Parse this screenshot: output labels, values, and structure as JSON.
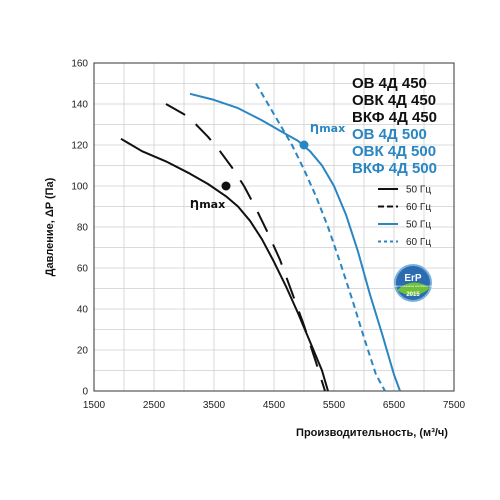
{
  "chart_data": {
    "type": "line",
    "title": "",
    "xlabel": "Производительность, (м³/ч)",
    "ylabel": "Давление, ΔP (Па)",
    "xlim": [
      1500,
      7500
    ],
    "ylim": [
      0,
      160
    ],
    "xticks": [
      "1500",
      "2500",
      "3500",
      "4500",
      "5500",
      "6500",
      "7500"
    ],
    "yticks": [
      "0",
      "20",
      "40",
      "60",
      "80",
      "100",
      "120",
      "140",
      "160"
    ],
    "grid": true,
    "legend_position": "right",
    "model_groups": [
      {
        "color": "#111111",
        "labels": [
          "ОВ 4Д 450",
          "ОВК 4Д 450",
          "ВКФ 4Д 450"
        ]
      },
      {
        "color": "#2a86c2",
        "labels": [
          "ОВ 4Д 500",
          "ОВК 4Д 500",
          "ВКФ 4Д 500"
        ]
      }
    ],
    "series": [
      {
        "name": "50 Гц",
        "color": "#111111",
        "style": "solid",
        "x": [
          1950,
          2300,
          2700,
          3100,
          3400,
          3700,
          3900,
          4100,
          4300,
          4500,
          4700,
          4900,
          5100,
          5300,
          5400
        ],
        "y": [
          123,
          117,
          112,
          106,
          101,
          95,
          90,
          83,
          74,
          63,
          51,
          38,
          24,
          10,
          0
        ]
      },
      {
        "name": "60 Гц",
        "color": "#111111",
        "style": "dashed",
        "x": [
          2700,
          3000,
          3200,
          3400,
          3600,
          3800,
          4000,
          4200,
          4400,
          4600,
          4800,
          5000,
          5200,
          5350
        ],
        "y": [
          140,
          135,
          130,
          124,
          117,
          109,
          100,
          89,
          77,
          64,
          48,
          32,
          14,
          0
        ]
      },
      {
        "name": "50 Гц",
        "color": "#2a86c2",
        "style": "solid",
        "x": [
          3100,
          3500,
          3900,
          4300,
          4600,
          4900,
          5100,
          5300,
          5500,
          5700,
          5900,
          6100,
          6300,
          6500,
          6600
        ],
        "y": [
          145,
          142,
          138,
          132,
          127,
          122,
          117,
          110,
          100,
          86,
          68,
          47,
          28,
          8,
          0
        ]
      },
      {
        "name": "60 Гц",
        "color": "#2a86c2",
        "style": "dashed",
        "x": [
          4200,
          4400,
          4600,
          4800,
          5000,
          5200,
          5400,
          5600,
          5800,
          6000,
          6200,
          6350
        ],
        "y": [
          150,
          140,
          130,
          120,
          108,
          95,
          80,
          63,
          45,
          26,
          8,
          0
        ]
      }
    ],
    "annotations": [
      {
        "text": "Ƞmax",
        "x": 3700,
        "y": 100,
        "color": "#111111"
      },
      {
        "text": "Ƞmax",
        "x": 5000,
        "y": 120,
        "color": "#2a86c2"
      }
    ],
    "badge": {
      "text": "ErP",
      "year": "2015",
      "label": "энергетическое соответствие"
    }
  }
}
